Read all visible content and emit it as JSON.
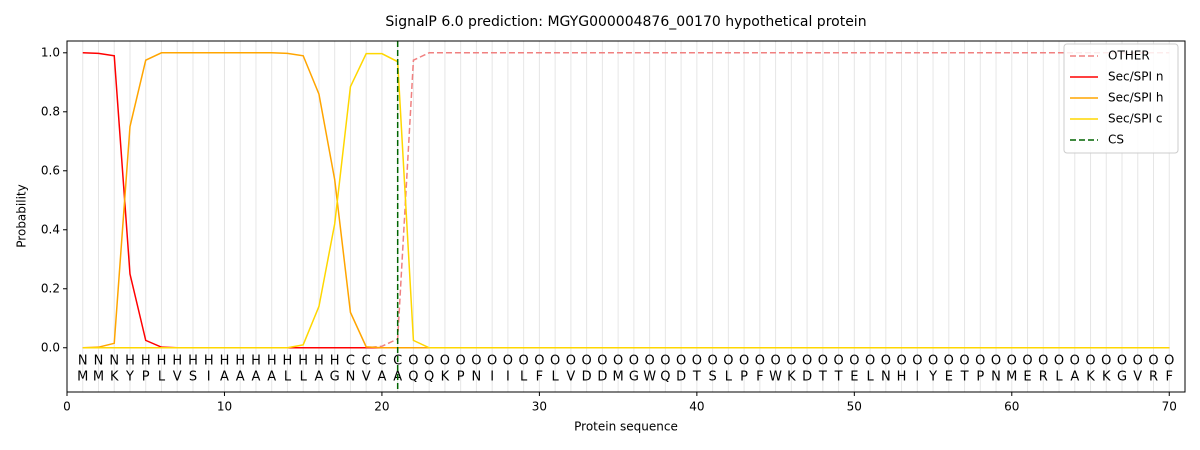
{
  "chart_data": {
    "type": "line",
    "title": "SignalP 6.0 prediction: MGYG000004876_00170 hypothetical protein",
    "xlabel": "Protein sequence",
    "ylabel": "Probability",
    "x": [
      1,
      2,
      3,
      4,
      5,
      6,
      7,
      8,
      9,
      10,
      11,
      12,
      13,
      14,
      15,
      16,
      17,
      18,
      19,
      20,
      21,
      22,
      23,
      24,
      25,
      26,
      27,
      28,
      29,
      30,
      31,
      32,
      33,
      34,
      35,
      36,
      37,
      38,
      39,
      40,
      41,
      42,
      43,
      44,
      45,
      46,
      47,
      48,
      49,
      50,
      51,
      52,
      53,
      54,
      55,
      56,
      57,
      58,
      59,
      60,
      61,
      62,
      63,
      64,
      65,
      66,
      67,
      68,
      69,
      70
    ],
    "residues": [
      "M",
      "M",
      "K",
      "Y",
      "P",
      "L",
      "V",
      "S",
      "I",
      "A",
      "A",
      "A",
      "A",
      "L",
      "L",
      "A",
      "G",
      "N",
      "V",
      "A",
      "A",
      "Q",
      "Q",
      "K",
      "P",
      "N",
      "I",
      "I",
      "L",
      "F",
      "L",
      "V",
      "D",
      "D",
      "M",
      "G",
      "W",
      "Q",
      "D",
      "T",
      "S",
      "L",
      "P",
      "F",
      "W",
      "K",
      "D",
      "T",
      "T",
      "E",
      "L",
      "N",
      "H",
      "I",
      "Y",
      "E",
      "T",
      "P",
      "N",
      "M",
      "E",
      "R",
      "L",
      "A",
      "K",
      "K",
      "G",
      "V",
      "R",
      "F"
    ],
    "labels": [
      "N",
      "N",
      "N",
      "H",
      "H",
      "H",
      "H",
      "H",
      "H",
      "H",
      "H",
      "H",
      "H",
      "H",
      "H",
      "H",
      "H",
      "C",
      "C",
      "C",
      "C",
      "O",
      "O",
      "O",
      "O",
      "O",
      "O",
      "O",
      "O",
      "O",
      "O",
      "O",
      "O",
      "O",
      "O",
      "O",
      "O",
      "O",
      "O",
      "O",
      "O",
      "O",
      "O",
      "O",
      "O",
      "O",
      "O",
      "O",
      "O",
      "O",
      "O",
      "O",
      "O",
      "O",
      "O",
      "O",
      "O",
      "O",
      "O",
      "O",
      "O",
      "O",
      "O",
      "O",
      "O",
      "O",
      "O",
      "O",
      "O",
      "O"
    ],
    "label_colors": {
      "N": "#ff0000",
      "H": "#ffa500",
      "C": "#ffc800",
      "O": "#808080"
    },
    "series": [
      {
        "name": "OTHER",
        "color": "#f08080",
        "linestyle": "dashed",
        "values": [
          0,
          0,
          0,
          0,
          0,
          0,
          0,
          0,
          0,
          0,
          0,
          0,
          0,
          0,
          0,
          0,
          0,
          0,
          0,
          0.005,
          0.03,
          0.975,
          1,
          1,
          1,
          1,
          1,
          1,
          1,
          1,
          1,
          1,
          1,
          1,
          1,
          1,
          1,
          1,
          1,
          1,
          1,
          1,
          1,
          1,
          1,
          1,
          1,
          1,
          1,
          1,
          1,
          1,
          1,
          1,
          1,
          1,
          1,
          1,
          1,
          1,
          1,
          1,
          1,
          1,
          1,
          1,
          1,
          1,
          1,
          1
        ]
      },
      {
        "name": "Sec/SPI n",
        "color": "#ff0000",
        "linestyle": "solid",
        "values": [
          1.0,
          0.998,
          0.99,
          0.25,
          0.025,
          0.002,
          0,
          0,
          0,
          0,
          0,
          0,
          0,
          0,
          0,
          0,
          0,
          0,
          0,
          0,
          0,
          0,
          0,
          0,
          0,
          0,
          0,
          0,
          0,
          0,
          0,
          0,
          0,
          0,
          0,
          0,
          0,
          0,
          0,
          0,
          0,
          0,
          0,
          0,
          0,
          0,
          0,
          0,
          0,
          0,
          0,
          0,
          0,
          0,
          0,
          0,
          0,
          0,
          0,
          0,
          0,
          0,
          0,
          0,
          0,
          0,
          0,
          0,
          0,
          0
        ]
      },
      {
        "name": "Sec/SPI h",
        "color": "#ffa500",
        "linestyle": "solid",
        "values": [
          0,
          0.002,
          0.015,
          0.75,
          0.975,
          1,
          1,
          1,
          1,
          1,
          1,
          1,
          1,
          0.998,
          0.99,
          0.86,
          0.57,
          0.12,
          0.003,
          0,
          0,
          0,
          0,
          0,
          0,
          0,
          0,
          0,
          0,
          0,
          0,
          0,
          0,
          0,
          0,
          0,
          0,
          0,
          0,
          0,
          0,
          0,
          0,
          0,
          0,
          0,
          0,
          0,
          0,
          0,
          0,
          0,
          0,
          0,
          0,
          0,
          0,
          0,
          0,
          0,
          0,
          0,
          0,
          0,
          0,
          0,
          0,
          0,
          0,
          0
        ]
      },
      {
        "name": "Sec/SPI c",
        "color": "#ffd700",
        "linestyle": "solid",
        "values": [
          0,
          0,
          0,
          0,
          0,
          0,
          0,
          0,
          0,
          0,
          0,
          0,
          0,
          0,
          0.01,
          0.14,
          0.42,
          0.885,
          0.997,
          0.997,
          0.97,
          0.025,
          0,
          0,
          0,
          0,
          0,
          0,
          0,
          0,
          0,
          0,
          0,
          0,
          0,
          0,
          0,
          0,
          0,
          0,
          0,
          0,
          0,
          0,
          0,
          0,
          0,
          0,
          0,
          0,
          0,
          0,
          0,
          0,
          0,
          0,
          0,
          0,
          0,
          0,
          0,
          0,
          0,
          0,
          0,
          0,
          0,
          0,
          0,
          0
        ]
      }
    ],
    "vlines": [
      {
        "name": "CS",
        "x": 21,
        "color": "#006400",
        "linestyle": "dashed"
      }
    ],
    "xlim": [
      0,
      71
    ],
    "ylim": [
      -0.15,
      1.04
    ],
    "xticks": [
      0,
      10,
      20,
      30,
      40,
      50,
      60,
      70
    ],
    "yticks": [
      {
        "value": 0,
        "label": "0.0"
      },
      {
        "value": 0.2,
        "label": "0.2"
      },
      {
        "value": 0.4,
        "label": "0.4"
      },
      {
        "value": 0.6,
        "label": "0.6"
      },
      {
        "value": 0.8,
        "label": "0.8"
      },
      {
        "value": 1,
        "label": "1.0"
      }
    ],
    "grid": true,
    "legend": "upper right"
  }
}
